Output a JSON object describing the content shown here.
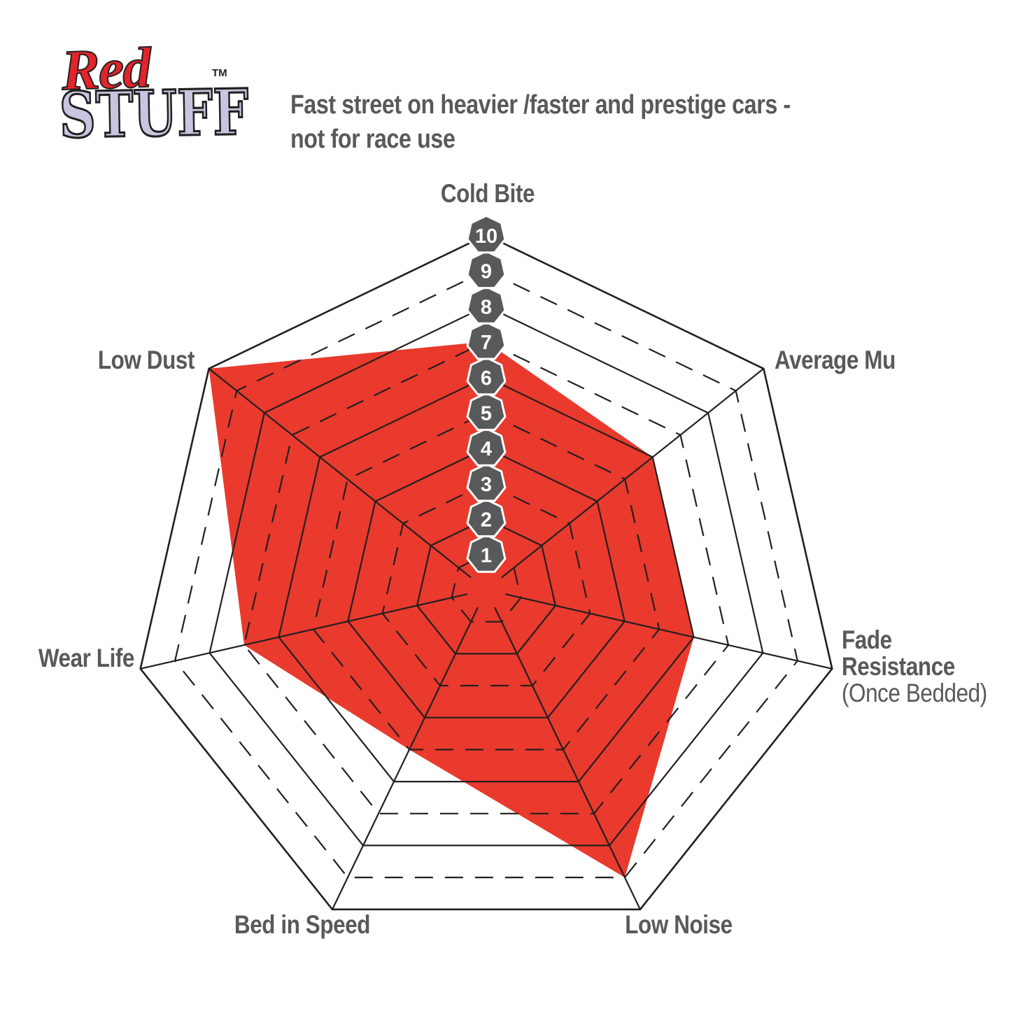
{
  "logo": {
    "word1": "Red",
    "word2": "STUFF",
    "trademark": "TM",
    "red_color": "#E2252B",
    "lavender_color": "#C7C6E0"
  },
  "header": {
    "subtitle_line1": "Fast street on heavier /faster and prestige cars -",
    "subtitle_line2": "not for race use"
  },
  "chart_data": {
    "type": "radar",
    "title": "EBC RedStuff brake pad performance ratings",
    "categories": [
      "Cold Bite",
      "Average Mu",
      "Fade Resistance (Once Bedded)",
      "Low Noise",
      "Bed in Speed",
      "Wear Life",
      "Low Dust"
    ],
    "values": [
      7,
      6,
      6,
      9,
      5,
      7,
      10
    ],
    "scale_min": 0,
    "scale_max": 10,
    "tick_labels": [
      "1",
      "2",
      "3",
      "4",
      "5",
      "6",
      "7",
      "8",
      "9",
      "10"
    ],
    "rings": 10,
    "grid_style": "heptagon rings, even rings solid, odd rings dashed, solid spokes",
    "legend": "none",
    "colors": {
      "fill": "#E93A2D",
      "grid_line": "#231F20",
      "tick_badge": "#58595B",
      "tick_badge_halo": "#FFFFFF",
      "tick_text": "#FFFFFF",
      "label_text": "#58595B"
    }
  },
  "axis_labels": {
    "cold_bite": "Cold Bite",
    "average_mu": "Average Mu",
    "fade_line1": "Fade",
    "fade_line2": "Resistance",
    "fade_line3": "(Once Bedded)",
    "low_noise": "Low Noise",
    "bed_in_speed": "Bed in Speed",
    "wear_life": "Wear Life",
    "low_dust": "Low Dust"
  }
}
